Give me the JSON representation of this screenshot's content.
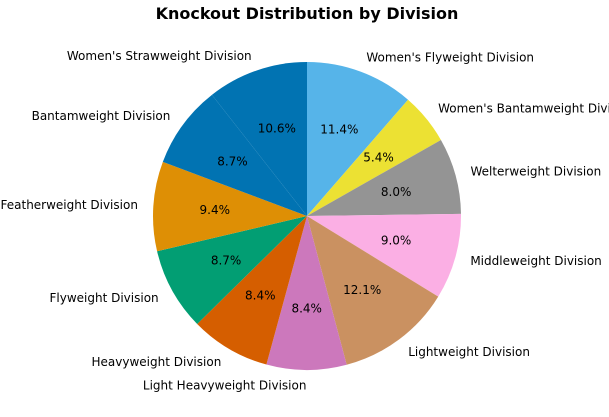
{
  "chart_data": {
    "type": "pie",
    "title": "Knockout Distribution by Division",
    "start_angle_deg": 90,
    "direction": "clockwise",
    "slices": [
      {
        "label": "Women's Flyweight Division",
        "value": 11.4,
        "pct_text": "11.4%",
        "color": "#56b4e9"
      },
      {
        "label": "Women's Bantamweight Division",
        "value": 5.4,
        "pct_text": "5.4%",
        "color": "#ece133"
      },
      {
        "label": "Welterweight Division",
        "value": 8.0,
        "pct_text": "8.0%",
        "color": "#949494"
      },
      {
        "label": "Middleweight Division",
        "value": 9.0,
        "pct_text": "9.0%",
        "color": "#fbafe4"
      },
      {
        "label": "Lightweight Division",
        "value": 12.1,
        "pct_text": "12.1%",
        "color": "#ca9161"
      },
      {
        "label": "Light Heavyweight Division",
        "value": 8.4,
        "pct_text": "8.4%",
        "color": "#cc78bc"
      },
      {
        "label": "Heavyweight Division",
        "value": 8.4,
        "pct_text": "8.4%",
        "color": "#d55e00"
      },
      {
        "label": "Flyweight Division",
        "value": 8.7,
        "pct_text": "8.7%",
        "color": "#029e73"
      },
      {
        "label": "Featherweight Division",
        "value": 9.4,
        "pct_text": "9.4%",
        "color": "#de8f05"
      },
      {
        "label": "Bantamweight Division",
        "value": 8.7,
        "pct_text": "8.7%",
        "color": "#0173b2"
      },
      {
        "label": "Women's Strawweight Division",
        "value": 10.6,
        "pct_text": "10.6%",
        "color": "#0173b2"
      }
    ]
  }
}
